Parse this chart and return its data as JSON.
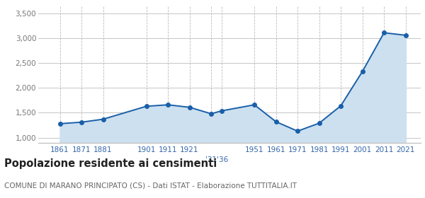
{
  "years": [
    1861,
    1871,
    1881,
    1901,
    1911,
    1921,
    1931,
    1936,
    1951,
    1961,
    1971,
    1981,
    1991,
    2001,
    2011,
    2021
  ],
  "population": [
    1280,
    1310,
    1370,
    1630,
    1660,
    1610,
    1480,
    1540,
    1660,
    1320,
    1130,
    1290,
    1640,
    2330,
    3110,
    3060
  ],
  "line_color": "#1a5fa8",
  "fill_color": "#cce0f0",
  "marker_color": "#1a5fa8",
  "grid_color": "#bbbbbb",
  "bg_color": "#ffffff",
  "title": "Popolazione residente ai censimenti",
  "subtitle": "COMUNE DI MARANO PRINCIPATO (CS) - Dati ISTAT - Elaborazione TUTTITALIA.IT",
  "ylim": [
    900,
    3650
  ],
  "yticks": [
    1000,
    1500,
    2000,
    2500,
    3000,
    3500
  ],
  "ytick_labels": [
    "1,000",
    "1,500",
    "2,000",
    "2,500",
    "3,000",
    "3,500"
  ],
  "xlim_left": 1851,
  "xlim_right": 2028,
  "title_fontsize": 10.5,
  "subtitle_fontsize": 7.5,
  "tick_fontsize": 7.5,
  "ytick_fontsize": 7.5,
  "xtick_color": "#3366aa",
  "ytick_color": "#777777"
}
